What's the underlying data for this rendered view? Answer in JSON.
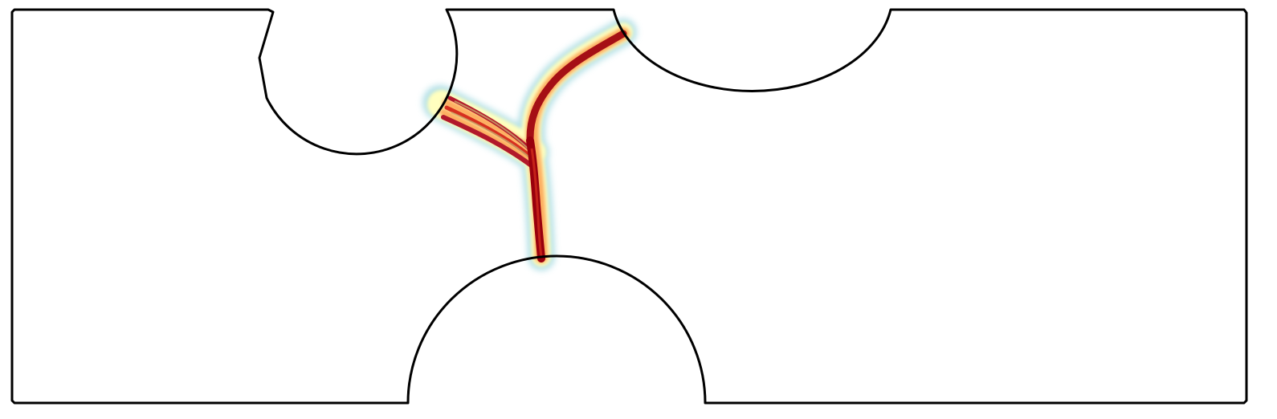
{
  "figure": {
    "description_visible_text": "",
    "colors": {
      "outline": "#000000",
      "background": "#ffffff",
      "crack_core": "#8b0000",
      "crack_mid": "#d7301f",
      "crack_outer": "#fdae61",
      "crack_halo_yellow": "#ffffbf",
      "crack_halo_cyan": "#abdde4"
    },
    "regions": {
      "specimen": "plate-with-three-semicircular-notches",
      "notches": [
        "top-left-notch",
        "top-right-notch",
        "bottom-center-notch"
      ],
      "cracks": [
        "crack-upper-branch",
        "crack-left-branch",
        "crack-main-stem"
      ]
    }
  }
}
